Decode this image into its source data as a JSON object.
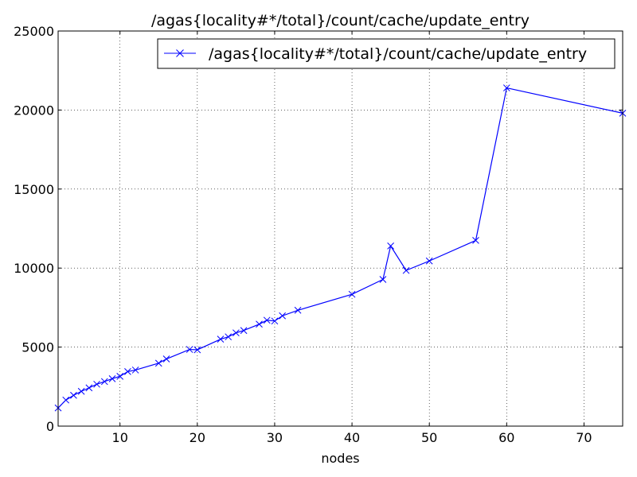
{
  "chart_data": {
    "type": "line",
    "title": "/agas{locality#*/total}/count/cache/update_entry",
    "xlabel": "nodes",
    "ylabel": "",
    "xlim": [
      2,
      75
    ],
    "ylim": [
      0,
      25000
    ],
    "xticks": [
      10,
      20,
      30,
      40,
      50,
      60,
      70
    ],
    "yticks": [
      0,
      5000,
      10000,
      15000,
      20000,
      25000
    ],
    "grid": true,
    "legend_position": "top-right",
    "series": [
      {
        "name": "/agas{locality#*/total}/count/cache/update_entry",
        "color": "#0000ff",
        "marker": "x",
        "x": [
          2,
          3,
          4,
          5,
          6,
          7,
          8,
          9,
          10,
          11,
          12,
          15,
          16,
          19,
          20,
          23,
          24,
          25,
          26,
          28,
          29,
          30,
          31,
          33,
          40,
          44,
          45,
          47,
          50,
          56,
          60,
          75
        ],
        "y": [
          1150,
          1650,
          1950,
          2200,
          2420,
          2650,
          2820,
          3000,
          3150,
          3450,
          3550,
          3980,
          4250,
          4850,
          4830,
          5500,
          5650,
          5900,
          6050,
          6450,
          6700,
          6650,
          6980,
          7330,
          8340,
          9280,
          11400,
          9850,
          10450,
          11750,
          21400,
          19800
        ]
      }
    ]
  }
}
